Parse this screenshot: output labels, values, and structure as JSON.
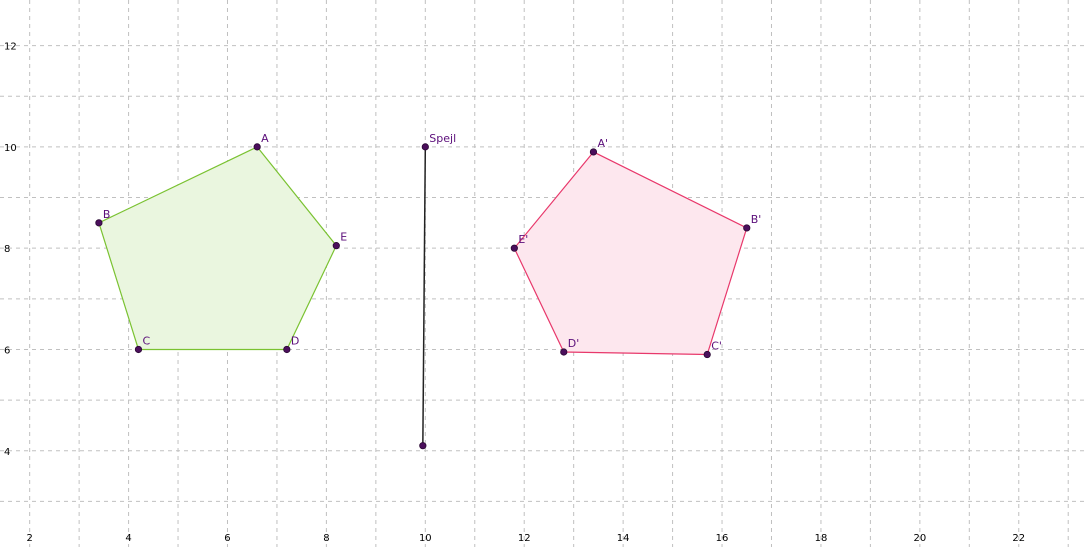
{
  "axes": {
    "x_ticks": [
      2,
      4,
      6,
      8,
      10,
      12,
      14,
      16,
      18,
      20,
      22
    ],
    "y_ticks": [
      4,
      6,
      8,
      10,
      12
    ],
    "x_range": [
      1.4,
      23.4
    ],
    "y_range": [
      2.1,
      12.9
    ],
    "grid": true,
    "grid_step": 1
  },
  "colors": {
    "grid": "#c0c0c0",
    "point": "#4b0f5c",
    "label": "#5b0e7a",
    "original_stroke": "#7ac231",
    "original_fill": "#eaf6df",
    "image_stroke": "#e8386b",
    "image_fill": "#fde7ee",
    "mirror": "#222222"
  },
  "original": {
    "points": [
      {
        "name": "A",
        "label": "A",
        "x": 6.6,
        "y": 10.0
      },
      {
        "name": "B",
        "label": "B",
        "x": 3.4,
        "y": 8.5
      },
      {
        "name": "C",
        "label": "C",
        "x": 4.2,
        "y": 6.0
      },
      {
        "name": "D",
        "label": "D",
        "x": 7.2,
        "y": 6.0
      },
      {
        "name": "E",
        "label": "E",
        "x": 8.2,
        "y": 8.05
      }
    ]
  },
  "image": {
    "points": [
      {
        "name": "A-prime",
        "label": "A'",
        "x": 13.4,
        "y": 9.9
      },
      {
        "name": "B-prime",
        "label": "B'",
        "x": 16.5,
        "y": 8.4
      },
      {
        "name": "C-prime",
        "label": "C'",
        "x": 15.7,
        "y": 5.9
      },
      {
        "name": "D-prime",
        "label": "D'",
        "x": 12.8,
        "y": 5.95
      },
      {
        "name": "E-prime",
        "label": "E'",
        "x": 11.8,
        "y": 8.0
      }
    ]
  },
  "mirror": {
    "label": "Spejl",
    "top": {
      "x": 10.0,
      "y": 10.0
    },
    "bottom": {
      "x": 9.95,
      "y": 4.1
    }
  }
}
